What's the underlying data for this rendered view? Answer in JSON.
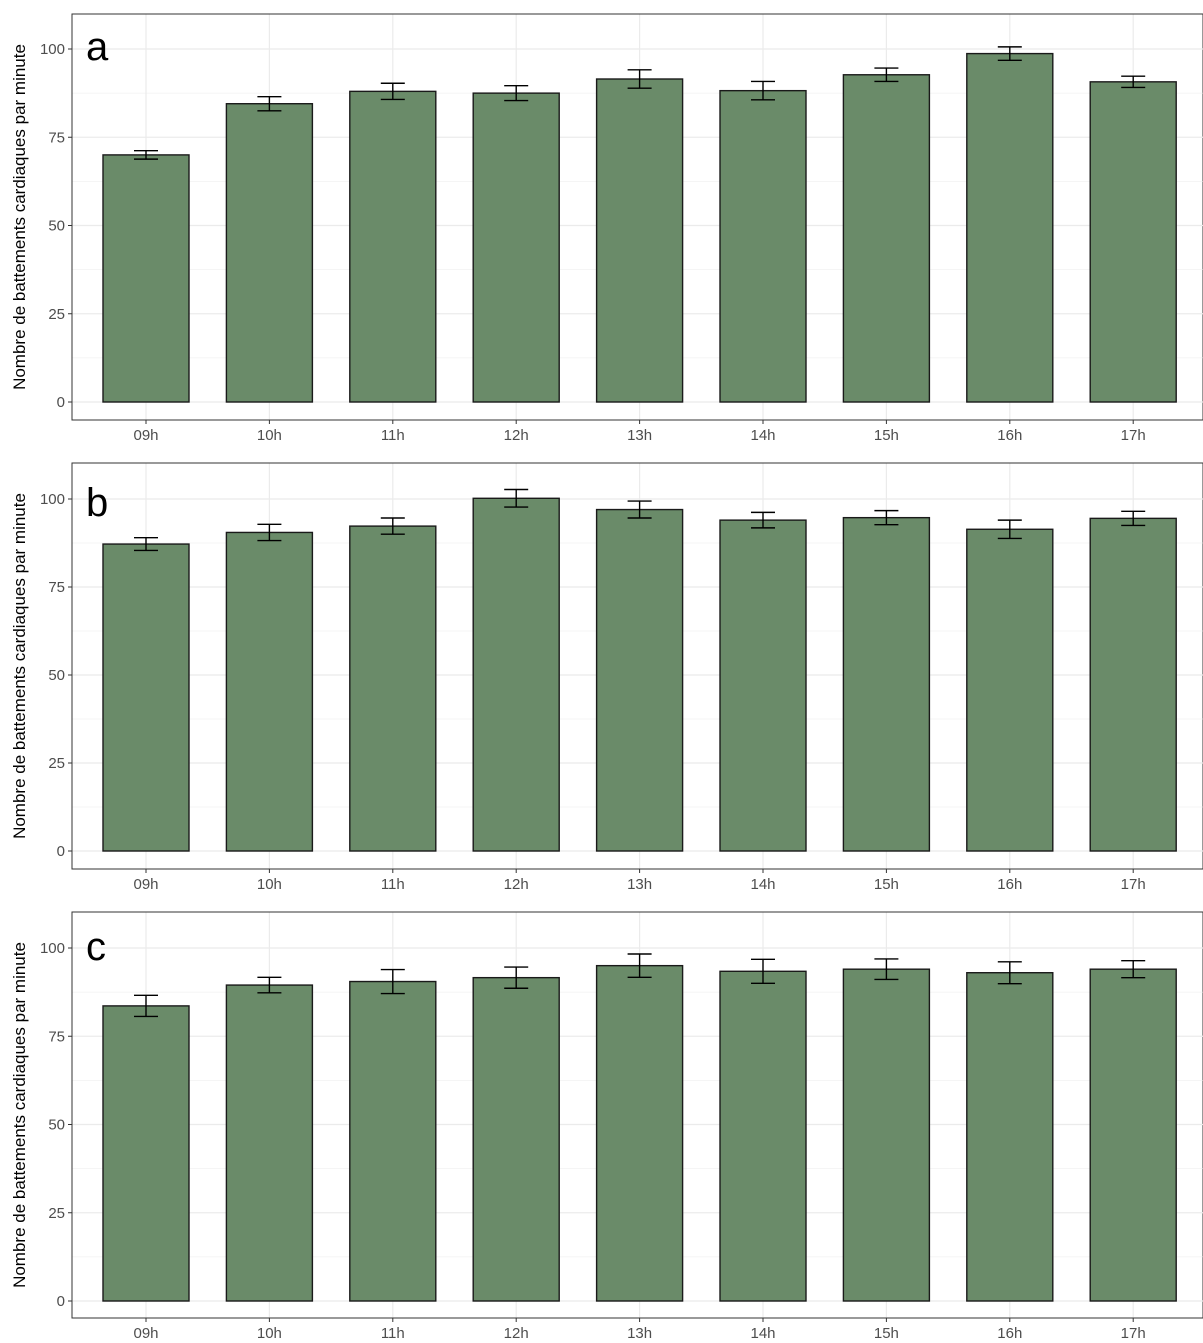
{
  "chart_data": [
    {
      "type": "bar",
      "panel_label": "a",
      "ylabel": "Nombre de battements cardiaques par minute",
      "categories": [
        "09h",
        "10h",
        "11h",
        "12h",
        "13h",
        "14h",
        "15h",
        "16h",
        "17h"
      ],
      "values": [
        70,
        84.5,
        88,
        87.5,
        91.5,
        88.2,
        92.7,
        98.7,
        90.7
      ],
      "error": [
        1.2,
        2,
        2.3,
        2.1,
        2.6,
        2.6,
        1.9,
        1.9,
        1.6
      ],
      "yticks": [
        0,
        25,
        50,
        75,
        100
      ],
      "ylim": [
        0,
        105
      ],
      "grid": true
    },
    {
      "type": "bar",
      "panel_label": "b",
      "ylabel": "Nombre de battements cardiaques par minute",
      "categories": [
        "09h",
        "10h",
        "11h",
        "12h",
        "13h",
        "14h",
        "15h",
        "16h",
        "17h"
      ],
      "values": [
        87.2,
        90.5,
        92.3,
        100.2,
        97,
        94,
        94.7,
        91.4,
        94.5
      ],
      "error": [
        1.8,
        2.3,
        2.3,
        2.5,
        2.4,
        2.2,
        2,
        2.6,
        2
      ],
      "yticks": [
        0,
        25,
        50,
        75,
        100
      ],
      "ylim": [
        0,
        105
      ],
      "grid": true
    },
    {
      "type": "bar",
      "panel_label": "c",
      "ylabel": "Nombre de battements cardiaques par minute",
      "categories": [
        "09h",
        "10h",
        "11h",
        "12h",
        "13h",
        "14h",
        "15h",
        "16h",
        "17h"
      ],
      "values": [
        83.6,
        89.5,
        90.5,
        91.6,
        95,
        93.4,
        94,
        93,
        94
      ],
      "error": [
        3,
        2.2,
        3.4,
        3,
        3.3,
        3.4,
        2.9,
        3.1,
        2.4
      ],
      "yticks": [
        0,
        25,
        50,
        75,
        100
      ],
      "ylim": [
        0,
        105
      ],
      "grid": true
    }
  ],
  "colors": {
    "bar_fill": "#6a8b69",
    "bar_stroke": "#1a1a1a",
    "grid": "#ebebeb",
    "panel_border": "#333333",
    "error_bar": "#000000"
  }
}
